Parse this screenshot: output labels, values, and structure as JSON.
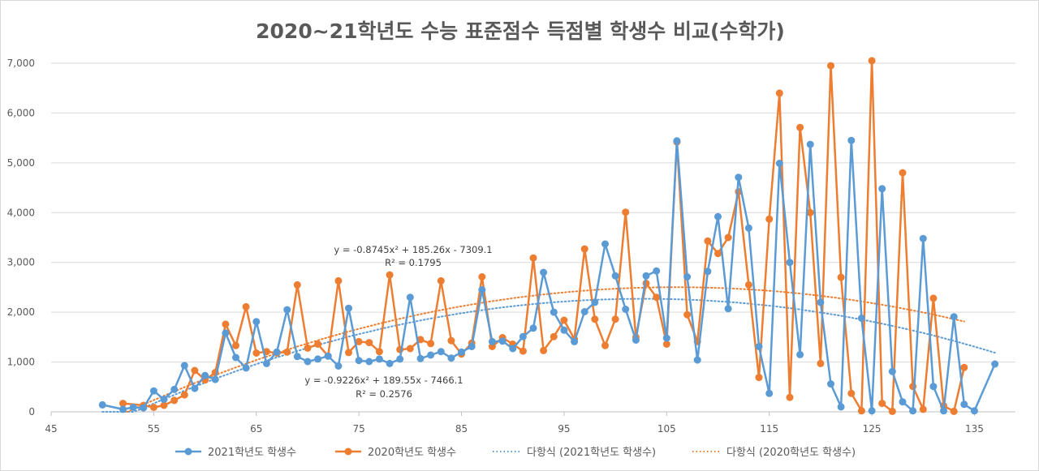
{
  "chart_data": {
    "type": "line",
    "title": "2020~21학년도 수능 표준점수 득점별 학생수 비교(수학가)",
    "xlabel": "",
    "ylabel": "",
    "xlim": [
      45,
      139
    ],
    "ylim": [
      0,
      7000
    ],
    "x_ticks": [
      45,
      55,
      65,
      75,
      85,
      95,
      105,
      115,
      125,
      135
    ],
    "y_ticks": [
      0,
      1000,
      2000,
      3000,
      4000,
      5000,
      6000,
      7000
    ],
    "y_tick_labels": [
      "0",
      "1,000",
      "2,000",
      "3,000",
      "4,000",
      "5,000",
      "6,000",
      "7,000"
    ],
    "grid": "horizontal",
    "legend_position": "bottom",
    "series": [
      {
        "name": "2021학년도 학생수",
        "color": "#5B9BD5",
        "points": [
          [
            50,
            140
          ],
          [
            52,
            50
          ],
          [
            53,
            90
          ],
          [
            54,
            80
          ],
          [
            55,
            420
          ],
          [
            56,
            250
          ],
          [
            57,
            450
          ],
          [
            58,
            930
          ],
          [
            59,
            470
          ],
          [
            60,
            730
          ],
          [
            61,
            650
          ],
          [
            62,
            1580
          ],
          [
            63,
            1090
          ],
          [
            64,
            880
          ],
          [
            65,
            1810
          ],
          [
            66,
            970
          ],
          [
            67,
            1200
          ],
          [
            68,
            2050
          ],
          [
            69,
            1110
          ],
          [
            70,
            1010
          ],
          [
            71,
            1060
          ],
          [
            72,
            1120
          ],
          [
            73,
            920
          ],
          [
            74,
            2080
          ],
          [
            75,
            1030
          ],
          [
            76,
            1010
          ],
          [
            77,
            1060
          ],
          [
            78,
            970
          ],
          [
            79,
            1060
          ],
          [
            80,
            2300
          ],
          [
            81,
            1070
          ],
          [
            82,
            1140
          ],
          [
            83,
            1210
          ],
          [
            84,
            1080
          ],
          [
            85,
            1200
          ],
          [
            86,
            1310
          ],
          [
            87,
            2450
          ],
          [
            88,
            1410
          ],
          [
            89,
            1420
          ],
          [
            90,
            1270
          ],
          [
            91,
            1510
          ],
          [
            92,
            1680
          ],
          [
            93,
            2800
          ],
          [
            94,
            2000
          ],
          [
            95,
            1640
          ],
          [
            96,
            1410
          ],
          [
            97,
            2010
          ],
          [
            98,
            2200
          ],
          [
            99,
            3370
          ],
          [
            100,
            2730
          ],
          [
            101,
            2060
          ],
          [
            102,
            1440
          ],
          [
            103,
            2730
          ],
          [
            104,
            2830
          ],
          [
            105,
            1480
          ],
          [
            106,
            5440
          ],
          [
            107,
            2710
          ],
          [
            108,
            1040
          ],
          [
            109,
            2820
          ],
          [
            110,
            3920
          ],
          [
            111,
            2070
          ],
          [
            112,
            4710
          ],
          [
            113,
            3690
          ],
          [
            114,
            1310
          ],
          [
            115,
            370
          ],
          [
            116,
            4990
          ],
          [
            117,
            3000
          ],
          [
            118,
            1150
          ],
          [
            119,
            5370
          ],
          [
            120,
            2200
          ],
          [
            121,
            560
          ],
          [
            122,
            100
          ],
          [
            123,
            5450
          ],
          [
            124,
            1880
          ],
          [
            125,
            20
          ],
          [
            126,
            4480
          ],
          [
            127,
            810
          ],
          [
            128,
            200
          ],
          [
            129,
            20
          ],
          [
            130,
            3480
          ],
          [
            131,
            510
          ],
          [
            132,
            20
          ],
          [
            133,
            1910
          ],
          [
            134,
            150
          ],
          [
            135,
            20
          ],
          [
            137,
            960
          ]
        ]
      },
      {
        "name": "2020학년도 학생수",
        "color": "#ED7D31",
        "points": [
          [
            52,
            170
          ],
          [
            54,
            130
          ],
          [
            55,
            90
          ],
          [
            56,
            130
          ],
          [
            57,
            230
          ],
          [
            58,
            340
          ],
          [
            59,
            830
          ],
          [
            60,
            640
          ],
          [
            61,
            790
          ],
          [
            62,
            1760
          ],
          [
            63,
            1330
          ],
          [
            64,
            2110
          ],
          [
            65,
            1180
          ],
          [
            66,
            1210
          ],
          [
            67,
            1180
          ],
          [
            68,
            1200
          ],
          [
            69,
            2550
          ],
          [
            70,
            1280
          ],
          [
            71,
            1360
          ],
          [
            72,
            1120
          ],
          [
            73,
            2630
          ],
          [
            74,
            1190
          ],
          [
            75,
            1410
          ],
          [
            76,
            1390
          ],
          [
            77,
            1210
          ],
          [
            78,
            2750
          ],
          [
            79,
            1250
          ],
          [
            80,
            1270
          ],
          [
            81,
            1450
          ],
          [
            82,
            1370
          ],
          [
            83,
            2630
          ],
          [
            84,
            1430
          ],
          [
            85,
            1160
          ],
          [
            86,
            1380
          ],
          [
            87,
            2710
          ],
          [
            88,
            1310
          ],
          [
            89,
            1490
          ],
          [
            90,
            1360
          ],
          [
            91,
            1220
          ],
          [
            92,
            3090
          ],
          [
            93,
            1230
          ],
          [
            94,
            1510
          ],
          [
            95,
            1840
          ],
          [
            96,
            1460
          ],
          [
            97,
            3270
          ],
          [
            98,
            1860
          ],
          [
            99,
            1330
          ],
          [
            100,
            1860
          ],
          [
            101,
            4010
          ],
          [
            102,
            1500
          ],
          [
            103,
            2580
          ],
          [
            104,
            2300
          ],
          [
            105,
            1360
          ],
          [
            106,
            5420
          ],
          [
            107,
            1950
          ],
          [
            108,
            1410
          ],
          [
            109,
            3430
          ],
          [
            110,
            3180
          ],
          [
            111,
            3500
          ],
          [
            112,
            4420
          ],
          [
            113,
            2550
          ],
          [
            114,
            690
          ],
          [
            115,
            3870
          ],
          [
            116,
            6400
          ],
          [
            117,
            290
          ],
          [
            118,
            5710
          ],
          [
            119,
            4000
          ],
          [
            120,
            970
          ],
          [
            121,
            6950
          ],
          [
            122,
            2700
          ],
          [
            123,
            370
          ],
          [
            124,
            20
          ],
          [
            125,
            7050
          ],
          [
            126,
            170
          ],
          [
            127,
            10
          ],
          [
            128,
            4800
          ],
          [
            129,
            510
          ],
          [
            130,
            50
          ],
          [
            131,
            2280
          ],
          [
            132,
            120
          ],
          [
            133,
            10
          ],
          [
            134,
            890
          ]
        ]
      }
    ],
    "trendlines": [
      {
        "name": "다항식 (2021학년도 학생수)",
        "color": "#5B9BD5",
        "coefficients": [
          -0.9226,
          189.55,
          -7466.1
        ],
        "range": [
          50,
          137
        ],
        "equation": "y = -0.9226x² + 189.55x - 7466.1",
        "r_squared": "R² = 0.2576"
      },
      {
        "name": "다항식 (2020학년도 학생수)",
        "color": "#ED7D31",
        "coefficients": [
          -0.8745,
          185.26,
          -7309.1
        ],
        "range": [
          52,
          134
        ],
        "equation": "y = -0.8745x² + 185.26x - 7309.1",
        "r_squared": "R² = 0.1795"
      }
    ]
  }
}
